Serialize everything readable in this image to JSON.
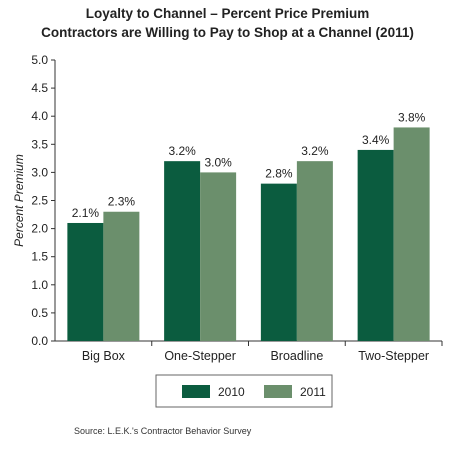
{
  "chart_data": {
    "type": "bar",
    "title_lines": [
      "Loyalty to Channel – Percent Price Premium",
      "Contractors are Willing to Pay to Shop at a Channel (2011)"
    ],
    "ylabel": "Percent Premium",
    "xlabel": "",
    "categories": [
      "Big Box",
      "One-Stepper",
      "Broadline",
      "Two-Stepper"
    ],
    "series": [
      {
        "name": "2010",
        "color": "#0b5c3f",
        "values": [
          2.1,
          3.2,
          2.8,
          3.4
        ],
        "labels": [
          "2.1%",
          "3.2%",
          "2.8%",
          "3.4%"
        ]
      },
      {
        "name": "2011",
        "color": "#6b8f6c",
        "values": [
          2.3,
          3.0,
          3.2,
          3.8
        ],
        "labels": [
          "2.3%",
          "3.0%",
          "3.2%",
          "3.8%"
        ]
      }
    ],
    "ylim": [
      0,
      5
    ],
    "yticks": [
      "0.0",
      "0.5",
      "1.0",
      "1.5",
      "2.0",
      "2.5",
      "3.0",
      "3.5",
      "4.0",
      "4.5",
      "5.0"
    ],
    "grid": false,
    "legend_position": "bottom-center"
  },
  "source": "Source: L.E.K.'s Contractor Behavior Survey"
}
